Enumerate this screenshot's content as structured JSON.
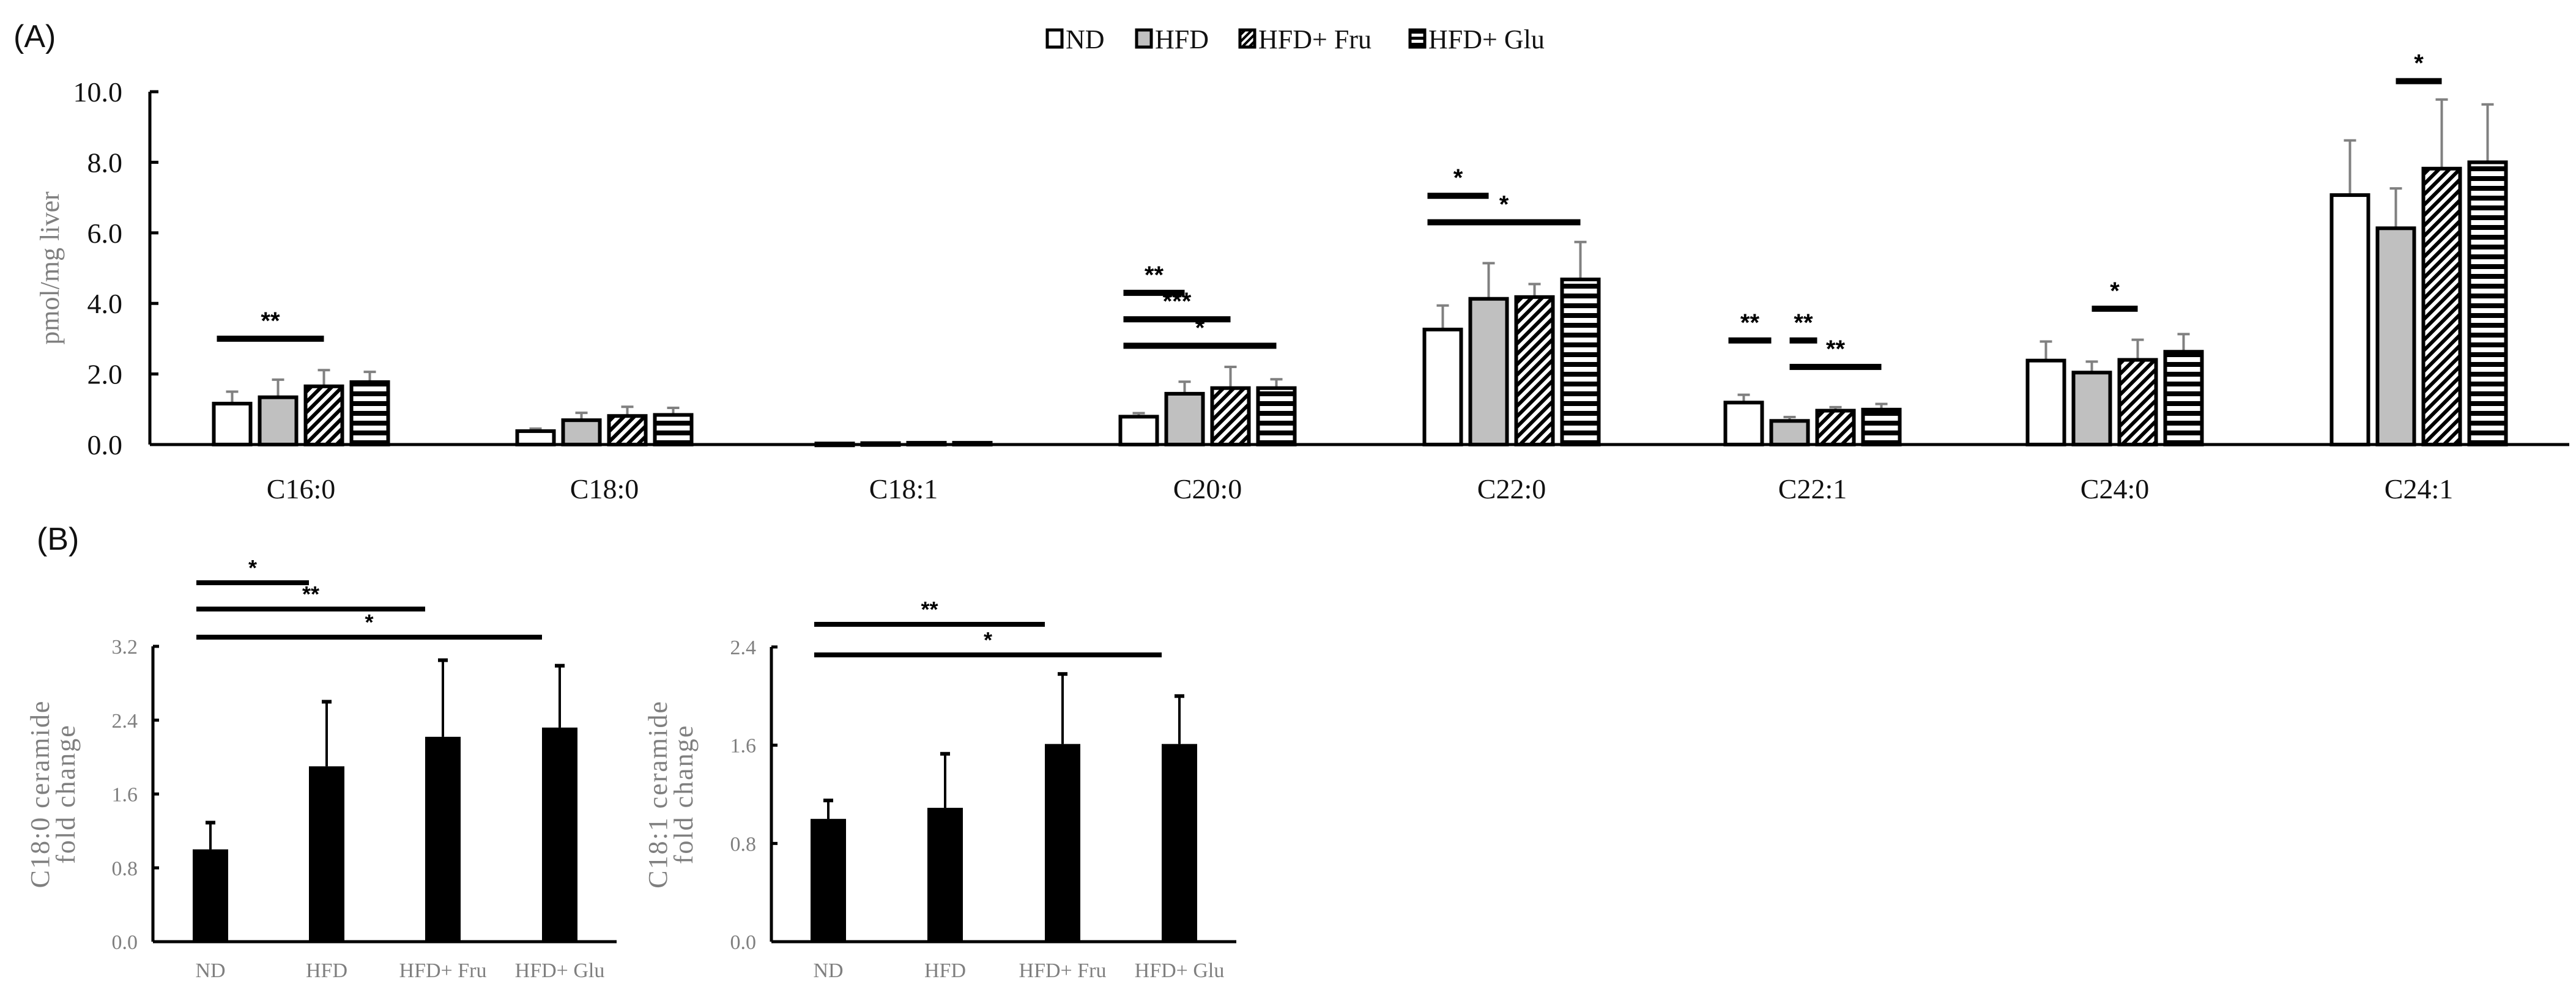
{
  "panel_a": {
    "label": "(A)",
    "legend": [
      {
        "name": "ND",
        "pattern": "white"
      },
      {
        "name": "HFD",
        "pattern": "gray"
      },
      {
        "name": "HFD+ Fru",
        "pattern": "diagonal"
      },
      {
        "name": "HFD+ Glu",
        "pattern": "horizontal"
      }
    ]
  },
  "panel_b": {
    "label": "(B)"
  },
  "colors": {
    "bar_outline": "#000000",
    "hfd_fill": "#c0c0c0",
    "error_bar": "#808080",
    "axis_label": "#7f7f7f",
    "solid_bar": "#000000"
  },
  "chart_data": [
    {
      "type": "bar",
      "panel": "A",
      "title": "",
      "xlabel": "",
      "ylabel": "pmol/mg liver",
      "ylim": [
        0,
        10
      ],
      "yticks": [
        "0.0",
        "2.0",
        "4.0",
        "6.0",
        "8.0",
        "10.0"
      ],
      "grid": false,
      "legend_position": "top-center",
      "categories": [
        "C16:0",
        "C18:0",
        "C18:1",
        "C20:0",
        "C22:0",
        "C22:1",
        "C24:0",
        "C24:1"
      ],
      "series": [
        {
          "name": "ND",
          "values": [
            1.16,
            0.38,
            0.03,
            0.79,
            3.26,
            1.19,
            2.38,
            7.07
          ],
          "error_upper": [
            1.5,
            0.45,
            0.04,
            0.89,
            3.94,
            1.41,
            2.92,
            8.62
          ]
        },
        {
          "name": "HFD",
          "values": [
            1.34,
            0.69,
            0.04,
            1.44,
            4.13,
            0.67,
            2.04,
            6.13
          ],
          "error_upper": [
            1.84,
            0.9,
            0.05,
            1.78,
            5.14,
            0.78,
            2.35,
            7.26
          ]
        },
        {
          "name": "HFD+ Fru",
          "values": [
            1.65,
            0.81,
            0.05,
            1.6,
            4.18,
            0.96,
            2.4,
            7.82
          ],
          "error_upper": [
            2.11,
            1.07,
            0.06,
            2.2,
            4.55,
            1.06,
            2.97,
            9.78
          ]
        },
        {
          "name": "HFD+ Glu",
          "values": [
            1.77,
            0.84,
            0.05,
            1.6,
            4.68,
            0.99,
            2.63,
            8.0
          ],
          "error_upper": [
            2.06,
            1.04,
            0.06,
            1.85,
            5.74,
            1.15,
            3.13,
            9.64
          ]
        }
      ],
      "annotations": [
        {
          "category": "C16:0",
          "from": "ND",
          "to": "HFD+ Fru",
          "label": "**",
          "y": 3.0
        },
        {
          "category": "C20:0",
          "from": "ND",
          "to": "HFD",
          "label": "**",
          "y": 4.3
        },
        {
          "category": "C20:0",
          "from": "ND",
          "to": "HFD+ Fru",
          "label": "***",
          "y": 3.55
        },
        {
          "category": "C20:0",
          "from": "ND",
          "to": "HFD+ Glu",
          "label": "*",
          "y": 2.8
        },
        {
          "category": "C22:0",
          "from": "ND",
          "to": "HFD",
          "label": "*",
          "y": 7.05
        },
        {
          "category": "C22:0",
          "from": "ND",
          "to": "HFD+ Glu",
          "label": "*",
          "y": 6.3
        },
        {
          "category": "C22:1",
          "from": "ND",
          "to": "HFD",
          "label": "**",
          "y": 2.95
        },
        {
          "category": "C22:1",
          "from": "HFD",
          "to": "HFD+ Fru",
          "label": "**",
          "y": 2.95
        },
        {
          "category": "C22:1",
          "from": "HFD",
          "to": "HFD+ Glu",
          "label": "**",
          "y": 2.2
        },
        {
          "category": "C24:0",
          "from": "HFD",
          "to": "HFD+ Fru",
          "label": "*",
          "y": 3.85
        },
        {
          "category": "C24:1",
          "from": "HFD",
          "to": "HFD+ Fru",
          "label": "*",
          "y": 10.3
        }
      ]
    },
    {
      "type": "bar",
      "panel": "B-left",
      "title": "",
      "xlabel": "",
      "ylabel": "C18:0 ceramide fold change",
      "ylim": [
        0,
        3.2
      ],
      "yticks": [
        "0.0",
        "0.8",
        "1.6",
        "2.4",
        "3.2"
      ],
      "grid": false,
      "categories": [
        "ND",
        "HFD",
        "HFD+ Fru",
        "HFD+ Glu"
      ],
      "values": [
        1.0,
        1.9,
        2.22,
        2.32
      ],
      "error_upper": [
        1.29,
        2.6,
        3.05,
        2.99
      ],
      "annotations": [
        {
          "from": "ND",
          "to": "HFD",
          "label": "*",
          "level": 3
        },
        {
          "from": "ND",
          "to": "HFD+ Fru",
          "label": "**",
          "level": 2
        },
        {
          "from": "ND",
          "to": "HFD+ Glu",
          "label": "*",
          "level": 1
        }
      ]
    },
    {
      "type": "bar",
      "panel": "B-right",
      "title": "",
      "xlabel": "",
      "ylabel": "C18:1 ceramide fold change",
      "ylim": [
        0,
        2.4
      ],
      "yticks": [
        "0.0",
        "0.8",
        "1.6",
        "2.4"
      ],
      "grid": false,
      "categories": [
        "ND",
        "HFD",
        "HFD+ Fru",
        "HFD+ Glu"
      ],
      "values": [
        1.0,
        1.09,
        1.61,
        1.61
      ],
      "error_upper": [
        1.15,
        1.53,
        2.18,
        2.0
      ],
      "annotations": [
        {
          "from": "ND",
          "to": "HFD+ Fru",
          "label": "**",
          "level": 2
        },
        {
          "from": "ND",
          "to": "HFD+ Glu",
          "label": "*",
          "level": 1
        }
      ]
    }
  ]
}
